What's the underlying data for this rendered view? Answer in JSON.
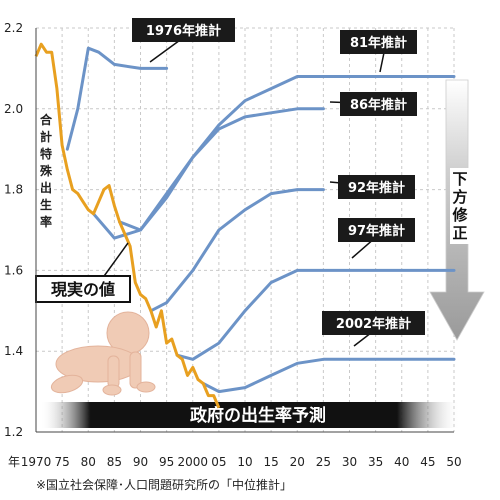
{
  "chart_data": {
    "type": "line",
    "title": "",
    "xlabel": "年",
    "ylabel": "合計特殊出生率",
    "xlim": [
      1970,
      2050
    ],
    "ylim": [
      1.2,
      2.2
    ],
    "x_ticks": [
      "1970",
      "75",
      "80",
      "85",
      "90",
      "95",
      "2000",
      "05",
      "10",
      "15",
      "20",
      "25",
      "30",
      "35",
      "40",
      "45",
      "50"
    ],
    "y_ticks": [
      "1.2",
      "1.4",
      "1.6",
      "1.8",
      "2.0",
      "2.2"
    ],
    "actual": {
      "name": "現実の値",
      "color": "#e8a020",
      "x": [
        1970,
        1971,
        1972,
        1973,
        1974,
        1975,
        1976,
        1977,
        1978,
        1979,
        1980,
        1981,
        1982,
        1983,
        1984,
        1985,
        1986,
        1987,
        1988,
        1989,
        1990,
        1991,
        1992,
        1993,
        1994,
        1995,
        1996,
        1997,
        1998,
        1999,
        2000,
        2001,
        2002,
        2003,
        2004,
        2005
      ],
      "y": [
        2.13,
        2.16,
        2.14,
        2.14,
        2.05,
        1.91,
        1.85,
        1.8,
        1.79,
        1.77,
        1.75,
        1.74,
        1.77,
        1.8,
        1.81,
        1.76,
        1.72,
        1.69,
        1.66,
        1.57,
        1.54,
        1.53,
        1.5,
        1.46,
        1.5,
        1.42,
        1.43,
        1.39,
        1.38,
        1.34,
        1.36,
        1.33,
        1.32,
        1.29,
        1.29,
        1.26
      ]
    },
    "series": [
      {
        "name": "1976年推計",
        "x": [
          1976,
          1978,
          1980,
          1982,
          1985,
          1990,
          1995
        ],
        "y": [
          1.9,
          2.0,
          2.15,
          2.14,
          2.11,
          2.1,
          2.1
        ]
      },
      {
        "name": "81年推計",
        "x": [
          1981,
          1985,
          1990,
          1995,
          2000,
          2005,
          2010,
          2015,
          2020,
          2025,
          2030,
          2040,
          2050
        ],
        "y": [
          1.74,
          1.68,
          1.7,
          1.78,
          1.88,
          1.96,
          2.02,
          2.05,
          2.08,
          2.08,
          2.08,
          2.08,
          2.08
        ]
      },
      {
        "name": "86年推計",
        "x": [
          1986,
          1990,
          1995,
          2000,
          2005,
          2010,
          2015,
          2020,
          2025
        ],
        "y": [
          1.72,
          1.7,
          1.79,
          1.88,
          1.95,
          1.98,
          1.99,
          2.0,
          2.0
        ]
      },
      {
        "name": "92年推計",
        "x": [
          1992,
          1995,
          2000,
          2005,
          2010,
          2015,
          2020,
          2025
        ],
        "y": [
          1.5,
          1.52,
          1.6,
          1.7,
          1.75,
          1.79,
          1.8,
          1.8
        ]
      },
      {
        "name": "97年推計",
        "x": [
          1997,
          2000,
          2005,
          2010,
          2015,
          2020,
          2025,
          2030,
          2040,
          2050
        ],
        "y": [
          1.39,
          1.38,
          1.42,
          1.5,
          1.57,
          1.6,
          1.6,
          1.6,
          1.6,
          1.6
        ]
      },
      {
        "name": "2002年推計",
        "x": [
          2002,
          2005,
          2010,
          2015,
          2020,
          2025,
          2030,
          2040,
          2050
        ],
        "y": [
          1.32,
          1.3,
          1.31,
          1.34,
          1.37,
          1.38,
          1.38,
          1.38,
          1.38
        ]
      }
    ],
    "annotations": {
      "revision_arrow": "下方修正",
      "forecast_band": "政府の出生率予測",
      "source": "※国立社会保障･人口問題研究所の「中位推計」"
    },
    "grid": true
  },
  "colors": {
    "actual": "#e8a020",
    "projection": "#6c93c7",
    "label_bg": "#1a1a1a",
    "grid": "#c9c9c9",
    "arrow": "#a9a9a9",
    "baby": "#f0cbb5"
  },
  "icons": [
    "baby-illustration"
  ]
}
